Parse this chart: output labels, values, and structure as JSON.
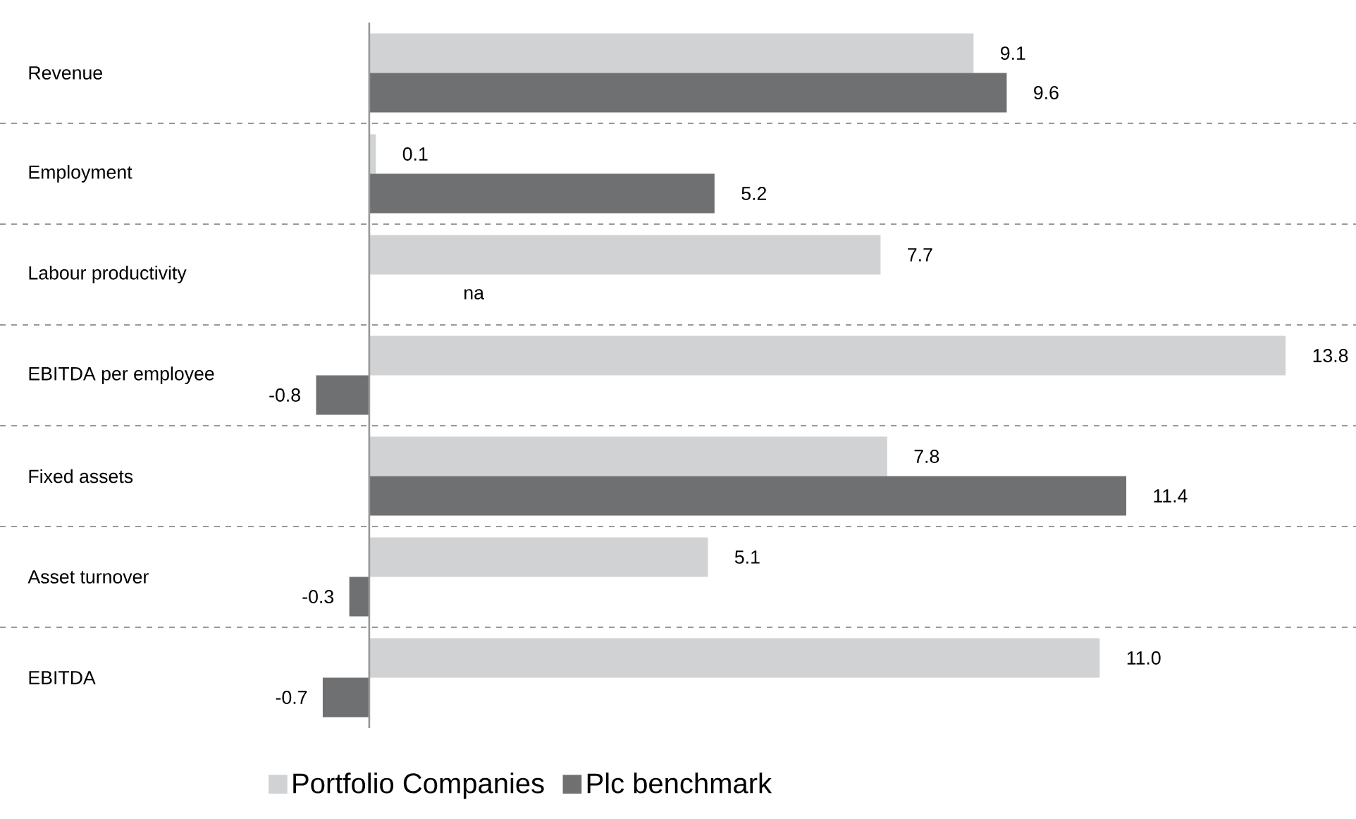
{
  "chart_data": {
    "type": "bar",
    "orientation": "horizontal",
    "categories": [
      "Revenue",
      "Employment",
      "Labour productivity",
      "EBITDA per employee",
      "Fixed assets",
      "Asset turnover",
      "EBITDA"
    ],
    "xlim": [
      -5.56,
      14.86
    ],
    "series": [
      {
        "name": "Portfolio Companies",
        "color": "#d1d2d4",
        "values": [
          9.1,
          0.1,
          7.7,
          13.8,
          7.8,
          5.1,
          11.0
        ],
        "value_labels": [
          "9.1",
          "0.1",
          "7.7",
          "13.8",
          "7.8",
          "5.1",
          "11.0"
        ]
      },
      {
        "name": "Plc benchmark",
        "color": "#6f7072",
        "values": [
          9.6,
          5.2,
          null,
          -0.8,
          11.4,
          -0.3,
          -0.7
        ],
        "value_labels": [
          "9.6",
          "5.2",
          "na",
          "-0.8",
          "11.4",
          "-0.3",
          "-0.7"
        ]
      }
    ],
    "grid": "y",
    "legend": "bottom"
  }
}
